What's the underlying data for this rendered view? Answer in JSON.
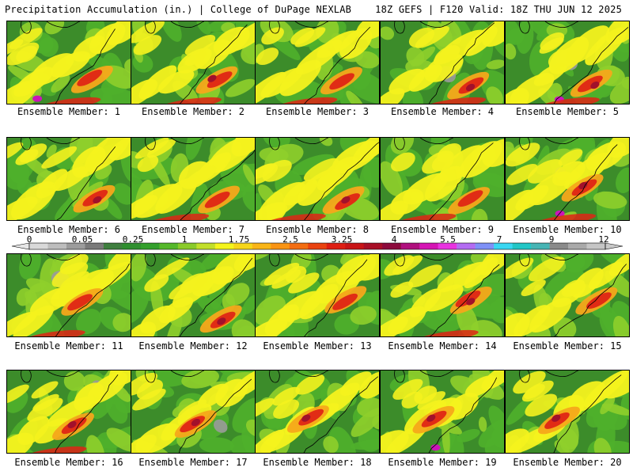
{
  "header": {
    "left": "Precipitation Accumulation (in.) | College of DuPage NEXLAB",
    "right": "18Z GEFS | F120 Valid: 18Z THU JUN 12 2025"
  },
  "panels": [
    {
      "label": "Ensemble Member: 1"
    },
    {
      "label": "Ensemble Member: 2"
    },
    {
      "label": "Ensemble Member: 3"
    },
    {
      "label": "Ensemble Member: 4"
    },
    {
      "label": "Ensemble Member: 5"
    },
    {
      "label": "Ensemble Member: 6"
    },
    {
      "label": "Ensemble Member: 7"
    },
    {
      "label": "Ensemble Member: 8"
    },
    {
      "label": "Ensemble Member: 9"
    },
    {
      "label": "Ensemble Member: 10"
    },
    {
      "label": "Ensemble Member: 11"
    },
    {
      "label": "Ensemble Member: 12"
    },
    {
      "label": "Ensemble Member: 13"
    },
    {
      "label": "Ensemble Member: 14"
    },
    {
      "label": "Ensemble Member: 15"
    },
    {
      "label": "Ensemble Member: 16"
    },
    {
      "label": "Ensemble Member: 17"
    },
    {
      "label": "Ensemble Member: 18"
    },
    {
      "label": "Ensemble Member: 19"
    },
    {
      "label": "Ensemble Member: 20"
    }
  ],
  "colorbar": {
    "labels": [
      "0",
      "0.05",
      "0.25",
      "1",
      "1.75",
      "2.5",
      "3.25",
      "4",
      "5.5",
      "7",
      "9",
      "12"
    ],
    "colors": [
      "#d9d9d9",
      "#bdbdbd",
      "#9c9c9c",
      "#7a7a7a",
      "#3f7f3f",
      "#2f8f2f",
      "#33a02c",
      "#55b82a",
      "#8acb2a",
      "#c2df2a",
      "#f5f51c",
      "#f7d61a",
      "#f9b517",
      "#f99414",
      "#f36d12",
      "#ea4310",
      "#de1e13",
      "#c81416",
      "#a80f26",
      "#8c0a3c",
      "#b0107e",
      "#d515b4",
      "#e933e0",
      "#b36cf2",
      "#7f91f7",
      "#39d7f2",
      "#22c6c6",
      "#46b4b4",
      "#8a8a8a",
      "#a9a9a9",
      "#c5c5c5"
    ],
    "palette": {
      "green_dark": "#3c8c2a",
      "green": "#4fb02b",
      "green_light": "#8fcf2b",
      "yellow": "#f4f21e",
      "orange": "#f6a81a",
      "red": "#df2515",
      "maroon": "#a2102b",
      "magenta": "#cc14b9",
      "gray": "#9a9a9a"
    }
  }
}
